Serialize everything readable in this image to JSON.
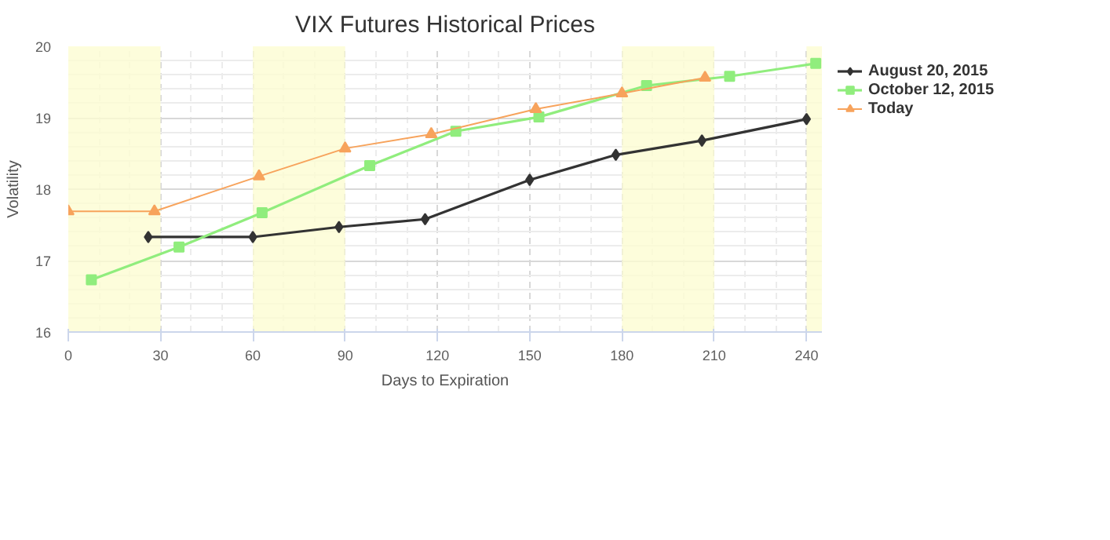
{
  "chart_data": {
    "type": "line",
    "title": "VIX Futures Historical Prices",
    "xlabel": "Days to Expiration",
    "ylabel": "Volatility",
    "xlim": [
      0,
      245
    ],
    "ylim": [
      16,
      20
    ],
    "xticks": [
      0,
      30,
      60,
      90,
      120,
      150,
      180,
      210,
      240
    ],
    "yticks": [
      16,
      17,
      18,
      19,
      20
    ],
    "grid": true,
    "legend": "top right",
    "bands": [
      {
        "axis": "x",
        "from": 0,
        "to": 30,
        "color": "#fcfcd2"
      },
      {
        "axis": "x",
        "from": 60,
        "to": 90,
        "color": "#fcfcd2"
      },
      {
        "axis": "x",
        "from": 180,
        "to": 210,
        "color": "#fcfcd2"
      },
      {
        "axis": "x",
        "from": 240,
        "to": 245,
        "color": "#fcfcd2"
      }
    ],
    "series": [
      {
        "name": "August 20, 2015",
        "color": "#333333",
        "marker": "diamond",
        "x": [
          26,
          60,
          88,
          116,
          150,
          178,
          206,
          240
        ],
        "values": [
          17.33,
          17.33,
          17.47,
          17.58,
          18.13,
          18.48,
          18.68,
          18.98
        ]
      },
      {
        "name": "October 12, 2015",
        "color": "#90ed7d",
        "marker": "square",
        "x": [
          7.5,
          36,
          63,
          98,
          126,
          153,
          188,
          215,
          243
        ],
        "values": [
          16.73,
          17.19,
          17.67,
          18.33,
          18.81,
          19.01,
          19.45,
          19.58,
          19.76
        ]
      },
      {
        "name": "Today",
        "color": "#f7a35c",
        "marker": "triangle",
        "x": [
          0,
          28,
          62,
          90,
          118,
          152,
          180,
          207
        ],
        "values": [
          17.69,
          17.69,
          18.18,
          18.57,
          18.77,
          19.12,
          19.34,
          19.56
        ]
      }
    ]
  }
}
